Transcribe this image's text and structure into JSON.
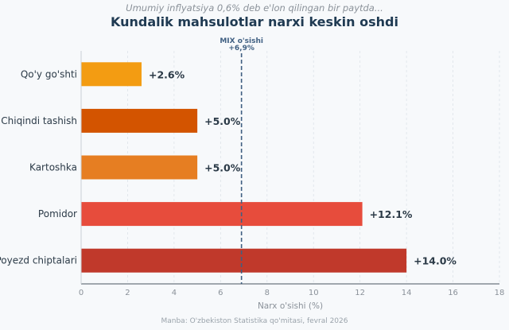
{
  "header": {
    "subtitle": "Umumiy inflyatsiya 0,6% deb e'lon qilingan bir paytda...",
    "title": "Kundalik mahsulotlar narxi keskin oshdi"
  },
  "footer": {
    "source": "Manba: O'zbekiston Statistika qo'mitasi, fevral 2026"
  },
  "chart_data": {
    "type": "bar",
    "orientation": "horizontal",
    "categories": [
      "Qo'y go'shti",
      "Chiqindi tashish",
      "Kartoshka",
      "Pomidor",
      "Poyezd chiptalari"
    ],
    "values": [
      2.6,
      5.0,
      5.0,
      12.1,
      14.0
    ],
    "data_labels": [
      "+2.6%",
      "+5.0%",
      "+5.0%",
      "+12.1%",
      "+14.0%"
    ],
    "colors": [
      "#f39c12",
      "#d35400",
      "#e67e22",
      "#e74c3c",
      "#c0392b"
    ],
    "xlabel": "Narx o'sishi (%)",
    "ylabel": "",
    "xlim": [
      0,
      18
    ],
    "xticks": [
      0,
      2,
      4,
      6,
      8,
      10,
      12,
      14,
      16,
      18
    ],
    "grid": "vertical",
    "reference_line": {
      "value": 6.9,
      "label_line1": "MIX o'sishi",
      "label_line2": "+6,9%",
      "color": "#3f5f82",
      "style": "dashed"
    }
  }
}
